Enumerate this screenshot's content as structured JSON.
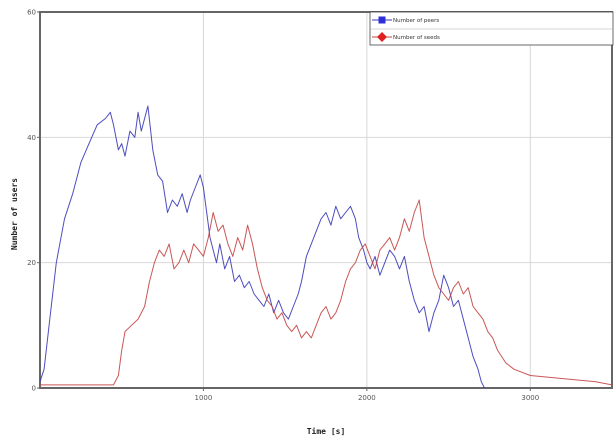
{
  "chart_data": {
    "type": "line",
    "title": "",
    "xlabel": "Time [s]",
    "ylabel": "Number of users",
    "xlim": [
      0,
      3500
    ],
    "ylim": [
      0,
      60
    ],
    "x_ticks": [
      1000,
      2000,
      3000
    ],
    "x_tick_labels": [
      "1000",
      "2000",
      "3000"
    ],
    "y_ticks": [
      0,
      20,
      40,
      60
    ],
    "y_tick_labels": [
      "0",
      "20",
      "40",
      "60"
    ],
    "grid": true,
    "legend": "top-right",
    "series": [
      {
        "name": "Number of peers",
        "color": "#3a3ab8",
        "marker": "square",
        "points": [
          [
            0,
            1
          ],
          [
            25,
            3
          ],
          [
            60,
            11
          ],
          [
            100,
            20
          ],
          [
            150,
            27
          ],
          [
            200,
            31
          ],
          [
            250,
            36
          ],
          [
            300,
            39
          ],
          [
            350,
            42
          ],
          [
            400,
            43
          ],
          [
            430,
            44
          ],
          [
            450,
            42
          ],
          [
            480,
            38
          ],
          [
            500,
            39
          ],
          [
            520,
            37
          ],
          [
            550,
            41
          ],
          [
            580,
            40
          ],
          [
            600,
            44
          ],
          [
            620,
            41
          ],
          [
            640,
            43
          ],
          [
            660,
            45
          ],
          [
            690,
            38
          ],
          [
            720,
            34
          ],
          [
            750,
            33
          ],
          [
            780,
            28
          ],
          [
            810,
            30
          ],
          [
            840,
            29
          ],
          [
            870,
            31
          ],
          [
            900,
            28
          ],
          [
            920,
            30
          ],
          [
            950,
            32
          ],
          [
            980,
            34
          ],
          [
            1000,
            32
          ],
          [
            1020,
            28
          ],
          [
            1040,
            24
          ],
          [
            1060,
            22
          ],
          [
            1080,
            20
          ],
          [
            1100,
            23
          ],
          [
            1130,
            19
          ],
          [
            1160,
            21
          ],
          [
            1190,
            17
          ],
          [
            1220,
            18
          ],
          [
            1250,
            16
          ],
          [
            1280,
            17
          ],
          [
            1310,
            15
          ],
          [
            1340,
            14
          ],
          [
            1370,
            13
          ],
          [
            1400,
            15
          ],
          [
            1430,
            12
          ],
          [
            1460,
            14
          ],
          [
            1490,
            12
          ],
          [
            1520,
            11
          ],
          [
            1550,
            13
          ],
          [
            1580,
            15
          ],
          [
            1600,
            17
          ],
          [
            1630,
            21
          ],
          [
            1660,
            23
          ],
          [
            1690,
            25
          ],
          [
            1720,
            27
          ],
          [
            1750,
            28
          ],
          [
            1780,
            26
          ],
          [
            1810,
            29
          ],
          [
            1840,
            27
          ],
          [
            1870,
            28
          ],
          [
            1900,
            29
          ],
          [
            1930,
            27
          ],
          [
            1950,
            24
          ],
          [
            1980,
            22
          ],
          [
            2000,
            20
          ],
          [
            2020,
            19
          ],
          [
            2050,
            21
          ],
          [
            2080,
            18
          ],
          [
            2110,
            20
          ],
          [
            2140,
            22
          ],
          [
            2170,
            21
          ],
          [
            2200,
            19
          ],
          [
            2230,
            21
          ],
          [
            2260,
            17
          ],
          [
            2290,
            14
          ],
          [
            2320,
            12
          ],
          [
            2350,
            13
          ],
          [
            2380,
            9
          ],
          [
            2410,
            12
          ],
          [
            2440,
            14
          ],
          [
            2470,
            18
          ],
          [
            2500,
            16
          ],
          [
            2530,
            13
          ],
          [
            2560,
            14
          ],
          [
            2590,
            11
          ],
          [
            2620,
            8
          ],
          [
            2650,
            5
          ],
          [
            2680,
            3
          ],
          [
            2700,
            1
          ],
          [
            2720,
            0
          ]
        ]
      },
      {
        "name": "Number of seeds",
        "color": "#c44444",
        "marker": "diamond",
        "points": [
          [
            0,
            0.5
          ],
          [
            300,
            0.5
          ],
          [
            450,
            0.5
          ],
          [
            480,
            2
          ],
          [
            500,
            6
          ],
          [
            520,
            9
          ],
          [
            560,
            10
          ],
          [
            600,
            11
          ],
          [
            640,
            13
          ],
          [
            670,
            17
          ],
          [
            700,
            20
          ],
          [
            730,
            22
          ],
          [
            760,
            21
          ],
          [
            790,
            23
          ],
          [
            820,
            19
          ],
          [
            850,
            20
          ],
          [
            880,
            22
          ],
          [
            910,
            20
          ],
          [
            940,
            23
          ],
          [
            970,
            22
          ],
          [
            1000,
            21
          ],
          [
            1030,
            24
          ],
          [
            1060,
            28
          ],
          [
            1090,
            25
          ],
          [
            1120,
            26
          ],
          [
            1150,
            23
          ],
          [
            1180,
            21
          ],
          [
            1210,
            24
          ],
          [
            1240,
            22
          ],
          [
            1270,
            26
          ],
          [
            1300,
            23
          ],
          [
            1330,
            19
          ],
          [
            1360,
            16
          ],
          [
            1390,
            14
          ],
          [
            1420,
            13
          ],
          [
            1450,
            11
          ],
          [
            1480,
            12
          ],
          [
            1510,
            10
          ],
          [
            1540,
            9
          ],
          [
            1570,
            10
          ],
          [
            1600,
            8
          ],
          [
            1630,
            9
          ],
          [
            1660,
            8
          ],
          [
            1690,
            10
          ],
          [
            1720,
            12
          ],
          [
            1750,
            13
          ],
          [
            1780,
            11
          ],
          [
            1810,
            12
          ],
          [
            1840,
            14
          ],
          [
            1870,
            17
          ],
          [
            1900,
            19
          ],
          [
            1930,
            20
          ],
          [
            1960,
            22
          ],
          [
            1990,
            23
          ],
          [
            2020,
            21
          ],
          [
            2050,
            19
          ],
          [
            2080,
            22
          ],
          [
            2110,
            23
          ],
          [
            2140,
            24
          ],
          [
            2170,
            22
          ],
          [
            2200,
            24
          ],
          [
            2230,
            27
          ],
          [
            2260,
            25
          ],
          [
            2290,
            28
          ],
          [
            2320,
            30
          ],
          [
            2350,
            24
          ],
          [
            2380,
            21
          ],
          [
            2410,
            18
          ],
          [
            2440,
            16
          ],
          [
            2470,
            15
          ],
          [
            2500,
            14
          ],
          [
            2530,
            16
          ],
          [
            2560,
            17
          ],
          [
            2590,
            15
          ],
          [
            2620,
            16
          ],
          [
            2650,
            13
          ],
          [
            2680,
            12
          ],
          [
            2710,
            11
          ],
          [
            2740,
            9
          ],
          [
            2770,
            8
          ],
          [
            2800,
            6
          ],
          [
            2850,
            4
          ],
          [
            2900,
            3
          ],
          [
            3000,
            2
          ],
          [
            3200,
            1.5
          ],
          [
            3400,
            1
          ],
          [
            3500,
            0.5
          ]
        ]
      }
    ]
  }
}
